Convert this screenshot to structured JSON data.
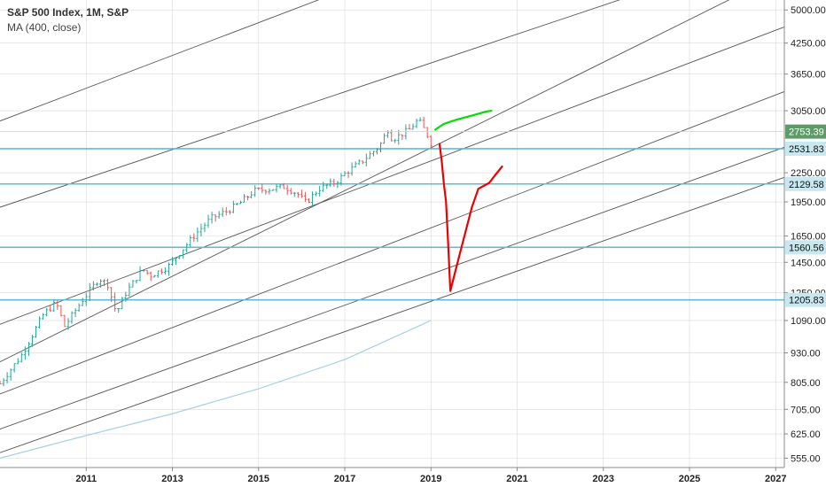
{
  "legend": {
    "title": "S&P 500 Index, 1M, S&P",
    "indicator": "MA (400, close)"
  },
  "colors": {
    "candle_up": "#26a69a",
    "candle_down": "#ef5350",
    "grid_line": "#d9d9d9",
    "trend_line": "#555555",
    "support_line": "#5fbcd3",
    "ma_line": "#a9cfe3",
    "forecast_bull": "#00dd00",
    "forecast_bear": "#ee0000",
    "last_price_badge": "#5d9c69",
    "support_badge": "#c8e7ef"
  },
  "chart_data": {
    "type": "candlestick",
    "title": "S&P 500 Index, 1M, S&P",
    "y_scale": "log",
    "ylim": [
      530,
      5250
    ],
    "xlim": [
      2009.0,
      2027.2
    ],
    "x_ticks": [
      "2011",
      "2013",
      "2015",
      "2017",
      "2019",
      "2021",
      "2023",
      "2025",
      "2027"
    ],
    "y_ticks": [
      "5000.00",
      "4250.00",
      "3650.00",
      "3050.00",
      "2250.00",
      "1950.00",
      "1650.00",
      "1450.00",
      "1250.00",
      "1090.00",
      "930.00",
      "805.00",
      "705.00",
      "625.00",
      "555.00"
    ],
    "last_price": {
      "value": 2753.39,
      "label": "2753.39"
    },
    "price_series": {
      "name": "S&P 500 monthly close (approx.)",
      "x": [
        2009.0,
        2009.5,
        2010.0,
        2010.3,
        2010.5,
        2010.9,
        2011.3,
        2011.5,
        2011.7,
        2011.9,
        2012.3,
        2012.5,
        2012.9,
        2013.3,
        2013.6,
        2013.9,
        2014.3,
        2014.6,
        2014.9,
        2015.3,
        2015.6,
        2015.9,
        2016.1,
        2016.4,
        2016.8,
        2017.0,
        2017.4,
        2017.8,
        2018.0,
        2018.1,
        2018.5,
        2018.7,
        2018.9,
        2019.0
      ],
      "y": [
        800,
        920,
        1120,
        1190,
        1060,
        1200,
        1340,
        1300,
        1130,
        1240,
        1400,
        1360,
        1420,
        1570,
        1690,
        1800,
        1870,
        1950,
        2060,
        2080,
        2100,
        2030,
        1940,
        2080,
        2150,
        2240,
        2380,
        2560,
        2780,
        2650,
        2780,
        2920,
        2730,
        2600
      ]
    },
    "moving_average": {
      "name": "MA (400, close)",
      "x": [
        2009.0,
        2011.0,
        2013.0,
        2015.0,
        2017.0,
        2019.0
      ],
      "y": [
        555,
        620,
        690,
        780,
        900,
        1090
      ]
    },
    "horizontal_levels": [
      {
        "value": 2531.83,
        "label": "2531.83"
      },
      {
        "value": 2129.58,
        "label": "2129.58"
      },
      {
        "value": 1560.56,
        "label": "1560.56"
      },
      {
        "value": 1205.83,
        "label": "1205.83"
      }
    ],
    "trend_lines": [
      {
        "x": [
          2009.0,
          2016.5
        ],
        "y": [
          2900,
          5300
        ]
      },
      {
        "x": [
          2009.0,
          2023.5
        ],
        "y": [
          1900,
          5300
        ]
      },
      {
        "x": [
          2009.0,
          2027.2
        ],
        "y": [
          1070,
          4600
        ]
      },
      {
        "x": [
          2009.0,
          2027.2
        ],
        "y": [
          760,
          3350
        ]
      },
      {
        "x": [
          2009.0,
          2027.2
        ],
        "y": [
          640,
          2550
        ]
      },
      {
        "x": [
          2009.0,
          2027.2
        ],
        "y": [
          570,
          2200
        ]
      },
      {
        "x": [
          2009.0,
          2026.0
        ],
        "y": [
          890,
          5300
        ]
      }
    ],
    "forecast_paths": [
      {
        "name": "bull",
        "x": [
          2019.1,
          2019.3,
          2019.6,
          2019.9,
          2020.3,
          2020.4
        ],
        "y": [
          2780,
          2860,
          2920,
          2970,
          3040,
          3050
        ]
      },
      {
        "name": "bear",
        "x": [
          2019.2,
          2019.25,
          2019.3,
          2019.35,
          2019.4,
          2019.45,
          2019.55,
          2019.7,
          2019.95,
          2020.1,
          2020.35,
          2020.5,
          2020.65
        ],
        "y": [
          2590,
          2380,
          2130,
          1950,
          1580,
          1260,
          1370,
          1550,
          1900,
          2080,
          2140,
          2230,
          2320
        ]
      }
    ]
  }
}
